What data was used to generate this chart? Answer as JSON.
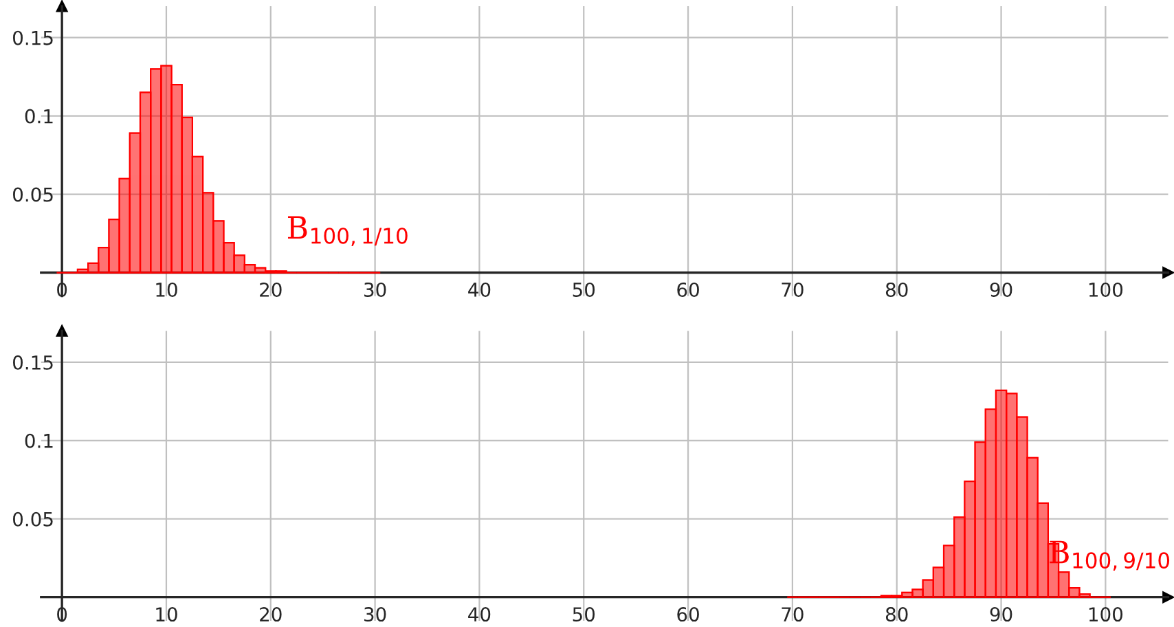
{
  "chart_data": [
    {
      "type": "histogram",
      "bins": [
        -0.5,
        0.5,
        1.5,
        2.5,
        3.5,
        4.5,
        5.5,
        6.5,
        7.5,
        8.5,
        9.5,
        10.5,
        11.5,
        12.5,
        13.5,
        14.5,
        15.5,
        16.5,
        17.5,
        18.5,
        19.5,
        20.5,
        21.5,
        22.5,
        23.5,
        24.5,
        25.5,
        26.5,
        27.5,
        28.5,
        29.5,
        30.5
      ],
      "series": [
        {
          "name": "B$_{100,1/10}$",
          "color": "#ff0000",
          "values": [
            0,
            0,
            0.002,
            0.006,
            0.016,
            0.034,
            0.06,
            0.089,
            0.115,
            0.13,
            0.132,
            0.12,
            0.099,
            0.074,
            0.051,
            0.033,
            0.019,
            0.011,
            0.005,
            0.003,
            0.001,
            0.001,
            0,
            0,
            0,
            0,
            0,
            0,
            0,
            0,
            0
          ]
        }
      ],
      "xlim": [
        -2,
        106
      ],
      "ylim": [
        -0.015,
        0.17
      ],
      "xticks": [
        0,
        10,
        20,
        30,
        40,
        50,
        60,
        70,
        80,
        90,
        100
      ],
      "yticks": [
        0.05,
        0.1,
        0.15
      ],
      "grid": true
    },
    {
      "type": "histogram",
      "bins": [
        69.5,
        70.5,
        71.5,
        72.5,
        73.5,
        74.5,
        75.5,
        76.5,
        77.5,
        78.5,
        79.5,
        80.5,
        81.5,
        82.5,
        83.5,
        84.5,
        85.5,
        86.5,
        87.5,
        88.5,
        89.5,
        90.5,
        91.5,
        92.5,
        93.5,
        94.5,
        95.5,
        96.5,
        97.5,
        98.5,
        99.5,
        100.5
      ],
      "series": [
        {
          "name": "B$_{100,9/10}$",
          "color": "#ff0000",
          "values": [
            0,
            0,
            0,
            0,
            0,
            0,
            0,
            0,
            0,
            0.001,
            0.001,
            0.003,
            0.005,
            0.011,
            0.019,
            0.033,
            0.051,
            0.074,
            0.099,
            0.12,
            0.132,
            0.13,
            0.115,
            0.089,
            0.06,
            0.034,
            0.016,
            0.006,
            0.002,
            0,
            0
          ]
        }
      ],
      "xlim": [
        -2,
        106
      ],
      "ylim": [
        -0.015,
        0.17
      ],
      "xticks": [
        0,
        10,
        20,
        30,
        40,
        50,
        60,
        70,
        80,
        90,
        100
      ],
      "yticks": [
        0.05,
        0.1,
        0.15
      ],
      "grid": true
    }
  ]
}
